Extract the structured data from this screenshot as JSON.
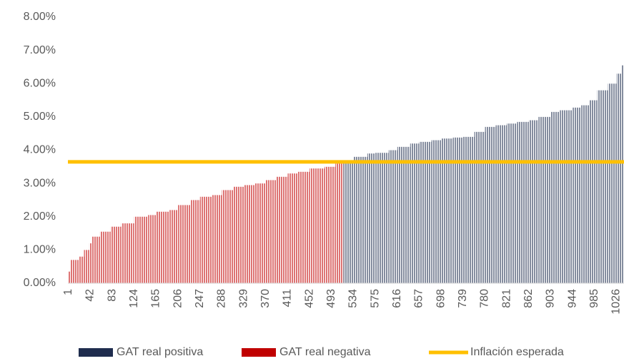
{
  "chart_data": {
    "type": "bar",
    "xlim": [
      0,
      1040
    ],
    "xticks": [
      1,
      42,
      83,
      124,
      165,
      206,
      247,
      288,
      329,
      370,
      411,
      452,
      493,
      534,
      575,
      616,
      657,
      698,
      739,
      780,
      821,
      862,
      903,
      944,
      985,
      1026
    ],
    "ylim": [
      0,
      8
    ],
    "yticks": [
      {
        "value": 0,
        "label": "0.00%"
      },
      {
        "value": 1,
        "label": "1.00%"
      },
      {
        "value": 2,
        "label": "2.00%"
      },
      {
        "value": 3,
        "label": "3.00%"
      },
      {
        "value": 4,
        "label": "4.00%"
      },
      {
        "value": 5,
        "label": "5.00%"
      },
      {
        "value": 6,
        "label": "6.00%"
      },
      {
        "value": 7,
        "label": "7.00%"
      },
      {
        "value": 8,
        "label": "8.00%"
      }
    ],
    "series": [
      {
        "name": "GAT real positiva",
        "color": "#1f2d4e",
        "x": [
          515,
          534,
          560,
          575,
          600,
          616,
          640,
          657,
          680,
          698,
          720,
          739,
          760,
          780,
          800,
          821,
          840,
          862,
          880,
          903,
          920,
          944,
          960,
          975,
          990,
          1010,
          1026,
          1035
        ],
        "values": [
          3.65,
          3.8,
          3.9,
          3.92,
          4.0,
          4.1,
          4.2,
          4.25,
          4.3,
          4.35,
          4.38,
          4.4,
          4.55,
          4.7,
          4.75,
          4.8,
          4.85,
          4.9,
          5.0,
          5.15,
          5.2,
          5.28,
          5.35,
          5.5,
          5.8,
          6.0,
          6.3,
          6.55
        ]
      },
      {
        "name": "GAT real negativa",
        "color": "#c00000",
        "x": [
          1,
          5,
          20,
          30,
          40,
          45,
          60,
          80,
          100,
          124,
          150,
          165,
          190,
          206,
          230,
          247,
          270,
          288,
          310,
          329,
          350,
          370,
          390,
          411,
          430,
          452,
          480,
          500
        ],
        "values": [
          0.35,
          0.7,
          0.8,
          1.0,
          1.2,
          1.4,
          1.55,
          1.7,
          1.8,
          2.0,
          2.05,
          2.15,
          2.2,
          2.35,
          2.5,
          2.6,
          2.65,
          2.8,
          2.9,
          2.95,
          3.0,
          3.1,
          3.2,
          3.3,
          3.35,
          3.45,
          3.5,
          3.6
        ]
      }
    ],
    "reference_line": {
      "name": "Inflación esperada",
      "value": 3.65,
      "color": "#ffc000"
    }
  }
}
